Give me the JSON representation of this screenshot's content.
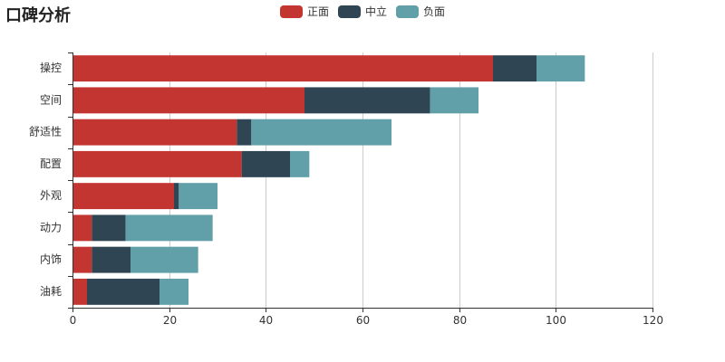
{
  "chart_data": {
    "type": "bar",
    "orientation": "horizontal",
    "stacked": true,
    "title": "口碑分析",
    "categories": [
      "操控",
      "空间",
      "舒适性",
      "配置",
      "外观",
      "动力",
      "内饰",
      "油耗"
    ],
    "series": [
      {
        "name": "正面",
        "color": "#c23531",
        "values": [
          87,
          48,
          34,
          35,
          21,
          4,
          4,
          3
        ]
      },
      {
        "name": "中立",
        "color": "#2f4554",
        "values": [
          9,
          26,
          3,
          10,
          1,
          7,
          8,
          15
        ]
      },
      {
        "name": "负面",
        "color": "#61a0a8",
        "values": [
          10,
          10,
          29,
          4,
          8,
          18,
          14,
          6
        ]
      }
    ],
    "xlim": [
      0,
      120
    ],
    "x_ticks": [
      0,
      20,
      40,
      60,
      80,
      100,
      120
    ],
    "grid": true,
    "legend_position": "top-center"
  }
}
